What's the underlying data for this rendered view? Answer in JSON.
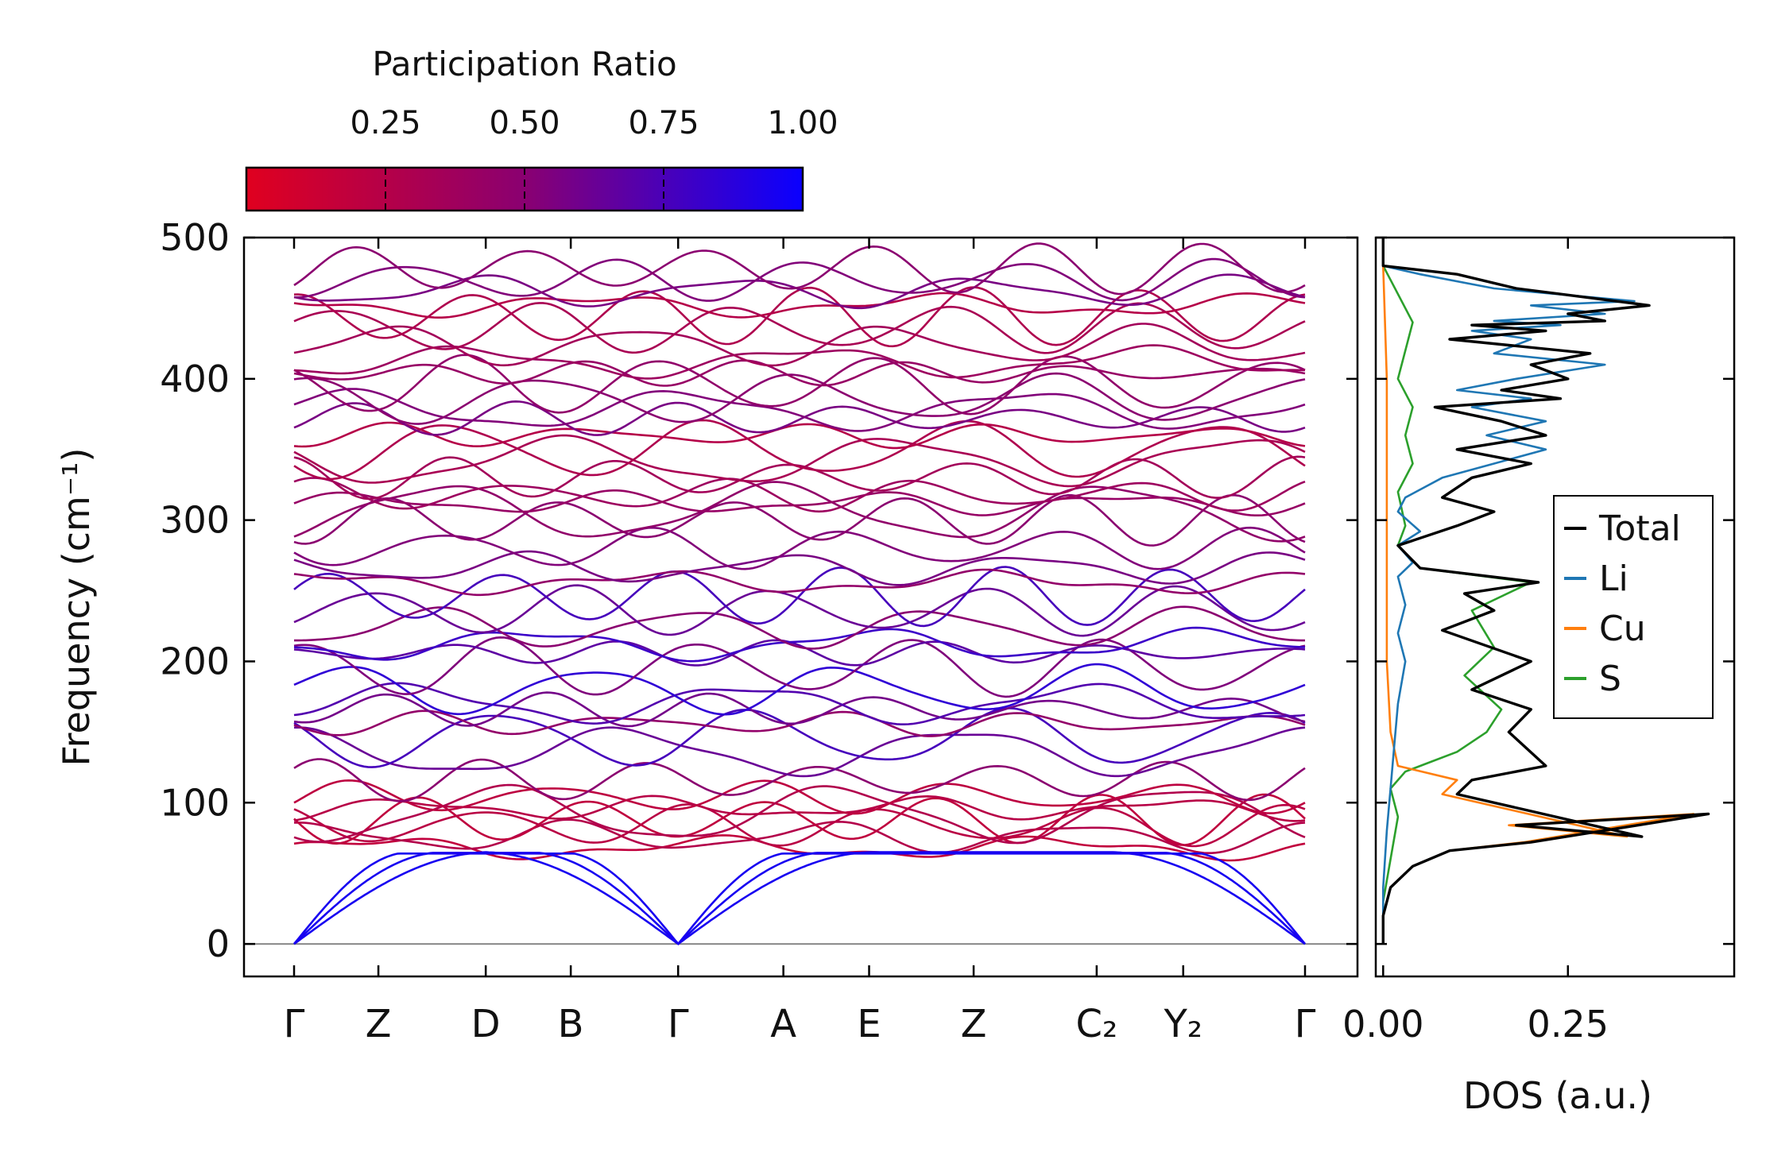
{
  "chart_data": [
    {
      "type": "line",
      "title": "",
      "xlabel": "",
      "ylabel": "Frequency (cm⁻¹)",
      "ylim": [
        -23,
        500
      ],
      "yticks": [
        0,
        100,
        200,
        300,
        400,
        500
      ],
      "ytick_labels": [
        "0",
        "100",
        "200",
        "300",
        "400",
        "500"
      ],
      "high_symmetry_points": [
        "Γ",
        "Z",
        "D",
        "B",
        "Γ",
        "A",
        "E",
        "Z",
        "C₂",
        "Y₂",
        "Γ"
      ],
      "path_positions": [
        0,
        0.0834,
        0.1896,
        0.2737,
        0.3799,
        0.484,
        0.5688,
        0.6722,
        0.7939,
        0.8795,
        1.0
      ],
      "colorbar": {
        "label": "Participation Ratio",
        "range": [
          0.0,
          1.0
        ],
        "ticks": [
          0.25,
          0.5,
          0.75,
          1.0
        ],
        "tick_labels": [
          "0.25",
          "0.50",
          "0.75",
          "1.00"
        ],
        "color_low": "#e0001f",
        "color_mid": "#8a0071",
        "color_high": "#0a00ff"
      },
      "acoustic_max_frequency": 65,
      "optical_band_frequencies": [
        68,
        76,
        84,
        88,
        92,
        96,
        104,
        116,
        136,
        146,
        156,
        166,
        170,
        180,
        196,
        206,
        212,
        224,
        236,
        246,
        256,
        266,
        280,
        300,
        306,
        312,
        318,
        330,
        342,
        350,
        360,
        372,
        378,
        386,
        396,
        404,
        412,
        424,
        436,
        444,
        452,
        462,
        470,
        478
      ],
      "zero_line": 0
    },
    {
      "type": "line",
      "title": "",
      "xlabel": "DOS (a.u.)",
      "ylabel": "",
      "xlim": [
        -0.01,
        0.475
      ],
      "xticks": [
        0.0,
        0.25
      ],
      "xtick_labels": [
        "0.00",
        "0.25"
      ],
      "ylim": [
        -23,
        500
      ],
      "legend_position": "center-right",
      "series": [
        {
          "name": "Total",
          "color": "#000000",
          "x": [
            0,
            0,
            0.01,
            0.04,
            0.09,
            0.2,
            0.44,
            0.18,
            0.35,
            0.1,
            0.12,
            0.22,
            0.17,
            0.2,
            0.12,
            0.2,
            0.08,
            0.15,
            0.11,
            0.21,
            0.05,
            0.02,
            0.1,
            0.15,
            0.08,
            0.12,
            0.2,
            0.1,
            0.22,
            0.16,
            0.07,
            0.24,
            0.16,
            0.25,
            0.2,
            0.28,
            0.09,
            0.22,
            0.12,
            0.3,
            0.25,
            0.36,
            0.18,
            0.1,
            0,
            0
          ],
          "y": [
            0,
            20,
            40,
            55,
            66,
            72,
            92,
            84,
            76,
            106,
            116,
            126,
            150,
            166,
            180,
            200,
            222,
            236,
            248,
            256,
            266,
            282,
            296,
            306,
            316,
            330,
            340,
            350,
            360,
            370,
            380,
            386,
            392,
            400,
            410,
            418,
            428,
            434,
            438,
            441,
            446,
            452,
            464,
            474,
            480,
            500
          ]
        },
        {
          "name": "Li",
          "color": "#1f77b4",
          "x": [
            0,
            0,
            0.005,
            0.01,
            0.015,
            0.02,
            0.03,
            0.02,
            0.03,
            0.02,
            0.04,
            0.02,
            0.05,
            0.02,
            0.03,
            0.08,
            0.15,
            0.22,
            0.14,
            0.22,
            0.12,
            0.2,
            0.1,
            0.18,
            0.3,
            0.15,
            0.2,
            0.12,
            0.24,
            0.15,
            0.3,
            0.2,
            0.34,
            0.15,
            0.05,
            0,
            0
          ],
          "y": [
            0,
            40,
            80,
            110,
            140,
            170,
            200,
            220,
            240,
            260,
            270,
            282,
            292,
            306,
            316,
            330,
            340,
            350,
            360,
            370,
            380,
            386,
            392,
            400,
            410,
            418,
            428,
            434,
            438,
            441,
            446,
            452,
            455,
            464,
            474,
            480,
            500
          ]
        },
        {
          "name": "Cu",
          "color": "#ff7f0e",
          "x": [
            0,
            0,
            0.01,
            0.04,
            0.09,
            0.19,
            0.42,
            0.17,
            0.33,
            0.08,
            0.1,
            0.02,
            0.01,
            0.005,
            0.005,
            0.005,
            0,
            0
          ],
          "y": [
            0,
            20,
            40,
            55,
            66,
            72,
            92,
            84,
            76,
            106,
            116,
            126,
            150,
            200,
            300,
            400,
            480,
            500
          ]
        },
        {
          "name": "S",
          "color": "#2ca02c",
          "x": [
            0,
            0,
            0.01,
            0.02,
            0.01,
            0.03,
            0.06,
            0.1,
            0.14,
            0.16,
            0.11,
            0.15,
            0.12,
            0.2,
            0.05,
            0.02,
            0.03,
            0.02,
            0.04,
            0.03,
            0.04,
            0.02,
            0.03,
            0.04,
            0.01,
            0,
            0
          ],
          "y": [
            0,
            30,
            60,
            90,
            110,
            122,
            128,
            136,
            150,
            166,
            190,
            210,
            236,
            256,
            266,
            282,
            296,
            320,
            340,
            360,
            380,
            400,
            420,
            440,
            470,
            480,
            500
          ]
        }
      ]
    }
  ]
}
